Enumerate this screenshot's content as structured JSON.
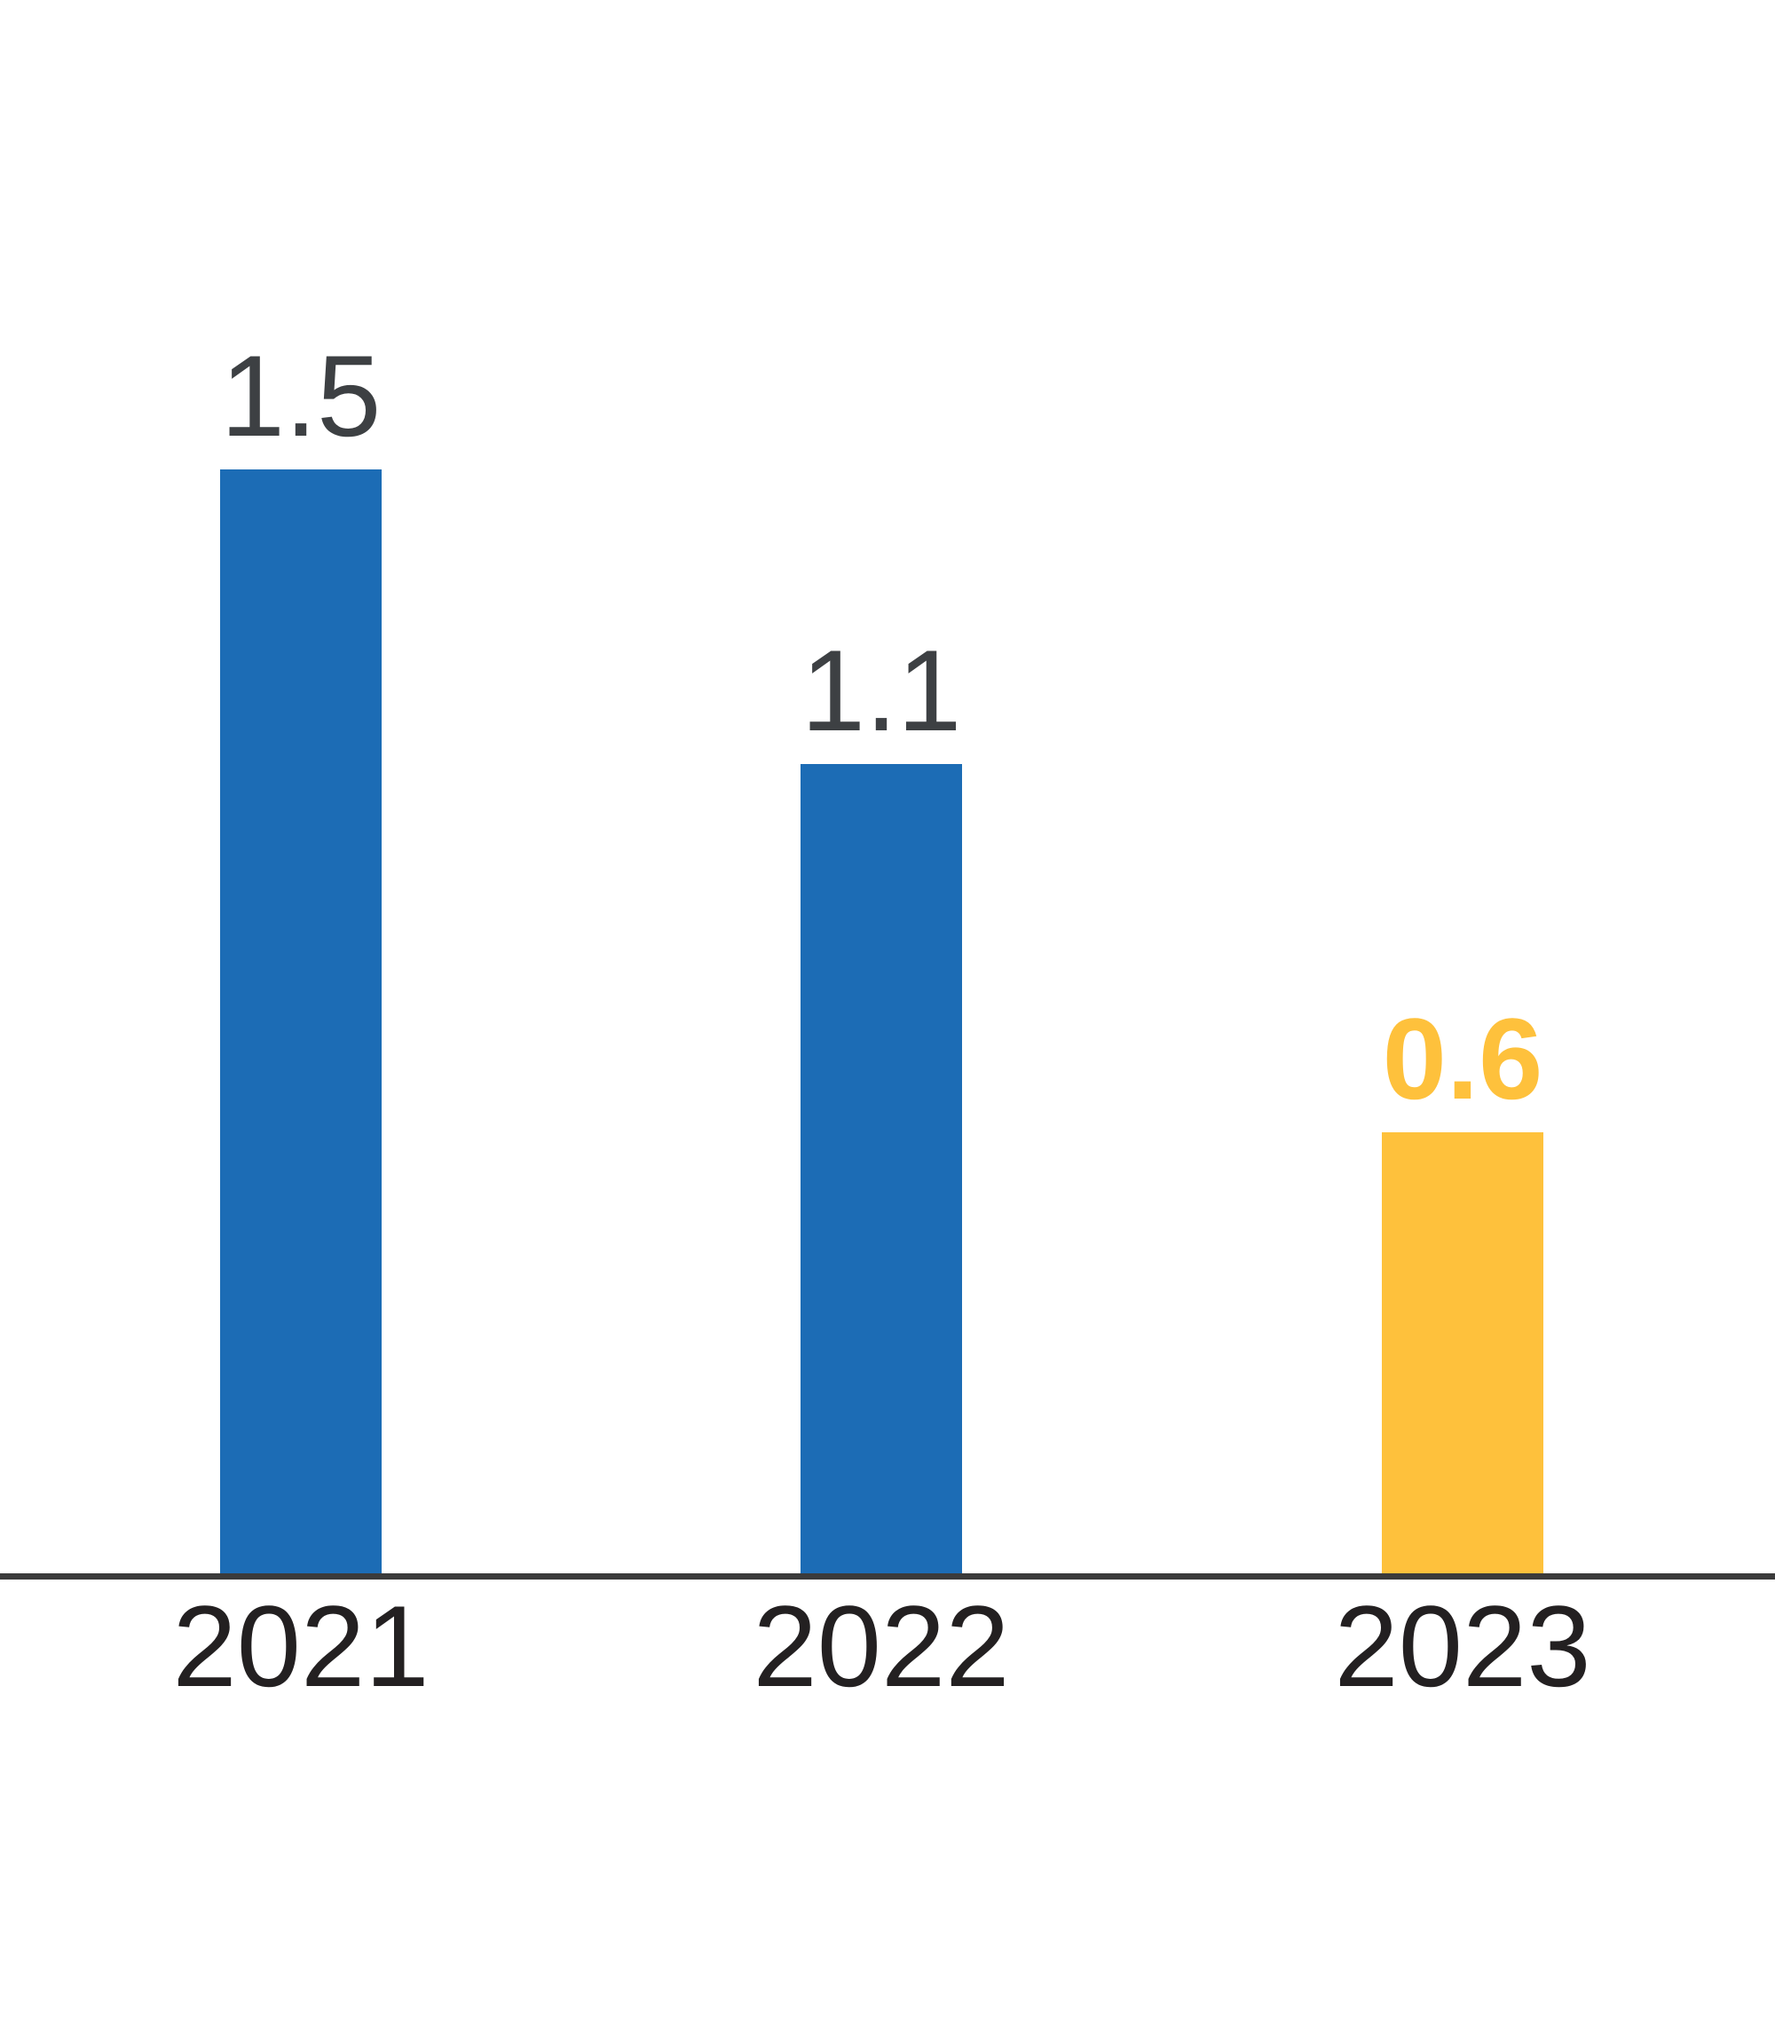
{
  "chart_data": {
    "type": "bar",
    "title": "",
    "xlabel": "",
    "ylabel": "",
    "categories": [
      "2021",
      "2022",
      "2023"
    ],
    "values": [
      1.5,
      1.1,
      0.6
    ],
    "bars": [
      {
        "category": "2021",
        "value": 1.5,
        "label": "1.5",
        "bar_color": "#1C6CB5",
        "label_color": "#3D4043",
        "label_weight": "normal"
      },
      {
        "category": "2022",
        "value": 1.1,
        "label": "1.1",
        "bar_color": "#1C6CB5",
        "label_color": "#3D4043",
        "label_weight": "normal"
      },
      {
        "category": "2023",
        "value": 0.6,
        "label": "0.6",
        "bar_color": "#FEC13C",
        "label_color": "#FEC13C",
        "label_weight": "bold"
      }
    ],
    "ylim": [
      0,
      1.8
    ],
    "grid": false,
    "legend": false,
    "data_labels": true,
    "axis_color": "#3B3B3B",
    "x_tick_label_color": "#232021",
    "background": "#FFFFFF"
  }
}
